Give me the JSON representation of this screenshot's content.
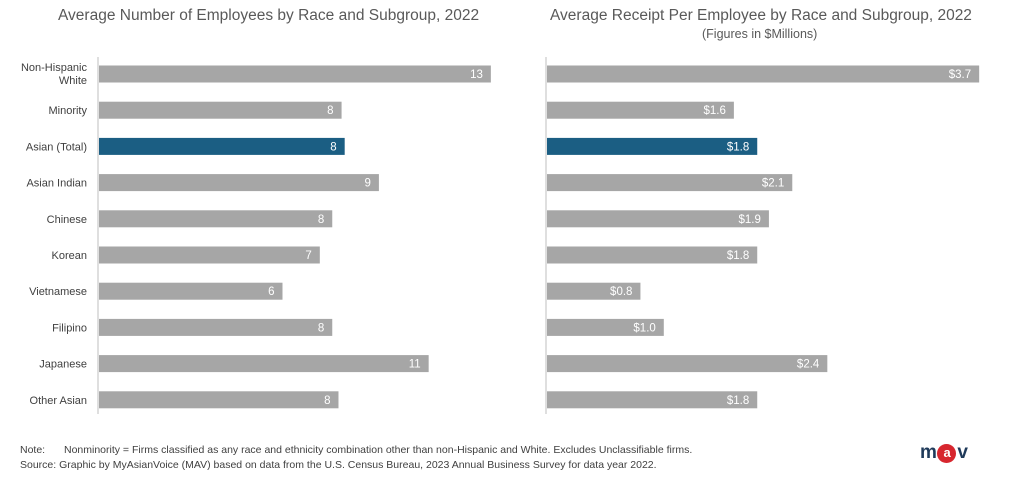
{
  "chart_data": [
    {
      "type": "bar",
      "orientation": "horizontal",
      "title": "Average Number of Employees by Race and Subgroup, 2022",
      "categories": [
        "Non-Hispanic White",
        "Minority",
        "Asian (Total)",
        "Asian Indian",
        "Chinese",
        "Korean",
        "Vietnamese",
        "Filipino",
        "Japanese",
        "Other Asian"
      ],
      "values": [
        13,
        8,
        8,
        9,
        8,
        7,
        6,
        8,
        11,
        8
      ],
      "exact_values": [
        12.6,
        7.8,
        7.9,
        9.0,
        7.5,
        7.1,
        5.9,
        7.5,
        10.6,
        7.7
      ],
      "labels": [
        "13",
        "8",
        "8",
        "9",
        "8",
        "7",
        "6",
        "8",
        "11",
        "8"
      ],
      "highlight_index": 2,
      "xlim": [
        0,
        13.5
      ]
    },
    {
      "type": "bar",
      "orientation": "horizontal",
      "title": "Average Receipt Per Employee by Race and Subgroup, 2022",
      "subtitle": "(Figures in $Millions)",
      "categories": [
        "Non-Hispanic White",
        "Minority",
        "Asian (Total)",
        "Asian Indian",
        "Chinese",
        "Korean",
        "Vietnamese",
        "Filipino",
        "Japanese",
        "Other Asian"
      ],
      "values": [
        3.7,
        1.6,
        1.8,
        2.1,
        1.9,
        1.8,
        0.8,
        1.0,
        2.4,
        1.8
      ],
      "labels": [
        "$3.7",
        "$1.6",
        "$1.8",
        "$2.1",
        "$1.9",
        "$1.8",
        "$0.8",
        "$1.0",
        "$2.4",
        "$1.8"
      ],
      "highlight_index": 2,
      "xlim": [
        0,
        3.8
      ]
    }
  ],
  "category_display": [
    [
      "Non-Hispanic",
      "White"
    ],
    [
      "Minority"
    ],
    [
      "Asian (Total)"
    ],
    [
      "Asian Indian"
    ],
    [
      "Chinese"
    ],
    [
      "Korean"
    ],
    [
      "Vietnamese"
    ],
    [
      "Filipino"
    ],
    [
      "Japanese"
    ],
    [
      "Other Asian"
    ]
  ],
  "footer": {
    "note_label": "Note:",
    "note_text": "Nonminority = Firms classified as any race and ethnicity combination other than non-Hispanic and White.  Excludes Unclassifiable firms.",
    "source_text": "Source: Graphic by MyAsianVoice (MAV) based on data from the U.S. Census Bureau, 2023 Annual Business Survey for data year 2022."
  },
  "logo": {
    "left": "m",
    "middle": "a",
    "right": "v"
  },
  "colors": {
    "bar": "#a6a6a6",
    "highlight": "#1b5e83",
    "axis": "#bfbfbf",
    "label_inside": "#ffffff",
    "category_text": "#404040"
  }
}
